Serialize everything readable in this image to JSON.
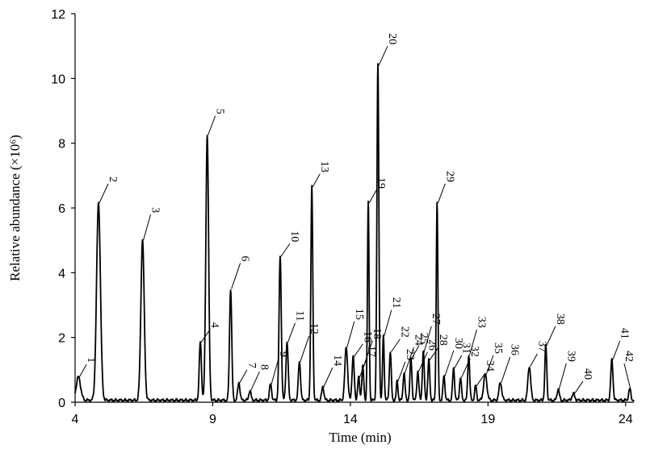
{
  "chart_data": {
    "type": "line",
    "title": "",
    "xlabel": "Time (min)",
    "ylabel": "Relative abundance (×10⁶)",
    "xlim": [
      4,
      24.3
    ],
    "ylim": [
      0,
      12
    ],
    "x_ticks": [
      4,
      9,
      14,
      19,
      24
    ],
    "y_ticks": [
      0,
      2,
      4,
      6,
      8,
      10,
      12
    ],
    "grid": false,
    "legend": "none",
    "line_color": "#000000",
    "baseline": 0.06,
    "peaks": [
      {
        "label": "1",
        "x": 4.12,
        "y": 0.72,
        "w": 0.08
      },
      {
        "label": "2",
        "x": 4.85,
        "y": 6.1,
        "w": 0.07
      },
      {
        "label": "3",
        "x": 6.45,
        "y": 4.95,
        "w": 0.06
      },
      {
        "label": "4",
        "x": 8.55,
        "y": 1.8,
        "w": 0.04
      },
      {
        "label": "5",
        "x": 8.8,
        "y": 8.2,
        "w": 0.05
      },
      {
        "label": "6",
        "x": 9.65,
        "y": 3.45,
        "w": 0.04
      },
      {
        "label": "7",
        "x": 9.95,
        "y": 0.55,
        "w": 0.04
      },
      {
        "label": "8",
        "x": 10.35,
        "y": 0.3,
        "w": 0.04
      },
      {
        "label": "9",
        "x": 11.1,
        "y": 0.5,
        "w": 0.04
      },
      {
        "label": "10",
        "x": 11.45,
        "y": 4.45,
        "w": 0.04
      },
      {
        "label": "11",
        "x": 11.7,
        "y": 1.8,
        "w": 0.04
      },
      {
        "label": "12",
        "x": 12.15,
        "y": 1.2,
        "w": 0.04
      },
      {
        "label": "13",
        "x": 12.6,
        "y": 6.6,
        "w": 0.035
      },
      {
        "label": "14",
        "x": 13.0,
        "y": 0.42,
        "w": 0.04
      },
      {
        "label": "15",
        "x": 13.85,
        "y": 1.65,
        "w": 0.05
      },
      {
        "label": "16",
        "x": 14.1,
        "y": 1.35,
        "w": 0.04
      },
      {
        "label": "17",
        "x": 14.3,
        "y": 0.7,
        "w": 0.035
      },
      {
        "label": "18",
        "x": 14.45,
        "y": 1.05,
        "w": 0.035
      },
      {
        "label": "19",
        "x": 14.65,
        "y": 6.1,
        "w": 0.03
      },
      {
        "label": "20",
        "x": 15.0,
        "y": 10.35,
        "w": 0.035
      },
      {
        "label": "21",
        "x": 15.2,
        "y": 2.0,
        "w": 0.03
      },
      {
        "label": "22",
        "x": 15.45,
        "y": 1.5,
        "w": 0.035
      },
      {
        "label": "23",
        "x": 15.7,
        "y": 0.6,
        "w": 0.03
      },
      {
        "label": "24",
        "x": 15.95,
        "y": 0.85,
        "w": 0.035
      },
      {
        "label": "25",
        "x": 16.2,
        "y": 1.3,
        "w": 0.035
      },
      {
        "label": "26",
        "x": 16.45,
        "y": 0.9,
        "w": 0.035
      },
      {
        "label": "27",
        "x": 16.65,
        "y": 1.5,
        "w": 0.035
      },
      {
        "label": "28",
        "x": 16.85,
        "y": 1.25,
        "w": 0.035
      },
      {
        "label": "29",
        "x": 17.15,
        "y": 6.1,
        "w": 0.03
      },
      {
        "label": "30",
        "x": 17.4,
        "y": 0.75,
        "w": 0.035
      },
      {
        "label": "31",
        "x": 17.75,
        "y": 1.0,
        "w": 0.035
      },
      {
        "label": "32",
        "x": 18.0,
        "y": 0.7,
        "w": 0.035
      },
      {
        "label": "33",
        "x": 18.3,
        "y": 1.4,
        "w": 0.035
      },
      {
        "label": "34",
        "x": 18.55,
        "y": 0.45,
        "w": 0.035
      },
      {
        "label": "35",
        "x": 18.9,
        "y": 0.8,
        "w": 0.06
      },
      {
        "label": "36",
        "x": 19.45,
        "y": 0.55,
        "w": 0.05
      },
      {
        "label": "37",
        "x": 20.5,
        "y": 1.05,
        "w": 0.05
      },
      {
        "label": "38",
        "x": 21.1,
        "y": 1.7,
        "w": 0.035
      },
      {
        "label": "39",
        "x": 21.55,
        "y": 0.35,
        "w": 0.04
      },
      {
        "label": "40",
        "x": 22.1,
        "y": 0.2,
        "w": 0.05
      },
      {
        "label": "41",
        "x": 23.5,
        "y": 1.25,
        "w": 0.04
      },
      {
        "label": "42",
        "x": 24.15,
        "y": 0.35,
        "w": 0.04
      }
    ]
  }
}
